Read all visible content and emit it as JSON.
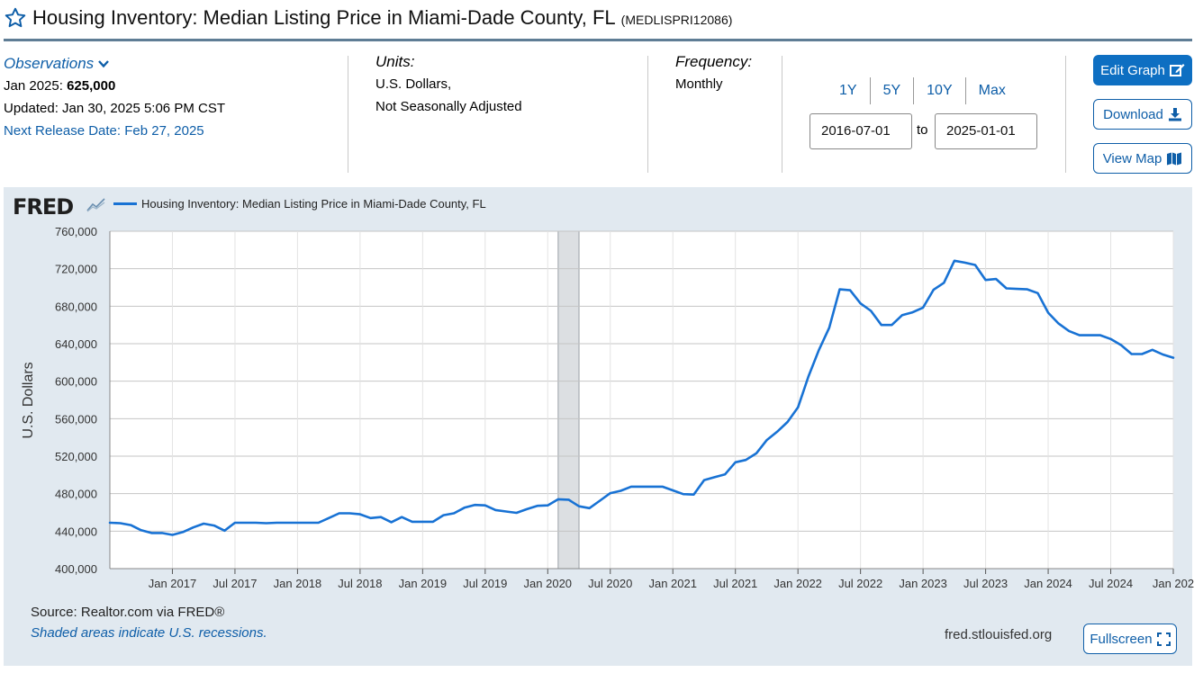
{
  "header": {
    "title": "Housing Inventory: Median Listing Price in Miami-Dade County, FL",
    "series_id": "(MEDLISPRI12086)"
  },
  "observations": {
    "label": "Observations",
    "latest_prefix": "Jan 2025:",
    "latest_value": "625,000",
    "updated": "Updated: Jan 30, 2025 5:06 PM CST",
    "next_release": "Next Release Date: Feb 27, 2025"
  },
  "units": {
    "label": "Units:",
    "line1": "U.S. Dollars,",
    "line2": "Not Seasonally Adjusted"
  },
  "frequency": {
    "label": "Frequency:",
    "value": "Monthly"
  },
  "range": {
    "tabs": [
      "1Y",
      "5Y",
      "10Y",
      "Max"
    ],
    "start": "2016-07-01",
    "to_label": "to",
    "end": "2025-01-01"
  },
  "buttons": {
    "edit_graph": "Edit Graph",
    "download": "Download",
    "view_map": "View Map",
    "fullscreen": "Fullscreen"
  },
  "footer": {
    "source": "Source: Realtor.com via FRED®",
    "recession_note": "Shaded areas indicate U.S. recessions.",
    "site": "fred.stlouisfed.org"
  },
  "logo_text": "FRED",
  "colors": {
    "series": "#1872d4",
    "panel_bg": "#e1e9f0",
    "link": "#0e5ea8",
    "recession": "#dcdfe2"
  },
  "icons": [
    "star-icon",
    "chevron-down-icon",
    "edit-icon",
    "download-icon",
    "map-icon",
    "fullscreen-icon",
    "fred-chart-icon"
  ],
  "chart_data": {
    "type": "line",
    "ylabel": "U.S. Dollars",
    "ylim": [
      400000,
      760000
    ],
    "yticks": [
      400000,
      440000,
      480000,
      520000,
      560000,
      600000,
      640000,
      680000,
      720000,
      760000
    ],
    "ytick_labels": [
      "400,000",
      "440,000",
      "480,000",
      "520,000",
      "560,000",
      "600,000",
      "640,000",
      "680,000",
      "720,000",
      "760,000"
    ],
    "xlim": [
      "2016-07",
      "2025-01"
    ],
    "xticks": [
      {
        "date": "2017-01",
        "label": "Jan 2017"
      },
      {
        "date": "2017-07",
        "label": "Jul 2017"
      },
      {
        "date": "2018-01",
        "label": "Jan 2018"
      },
      {
        "date": "2018-07",
        "label": "Jul 2018"
      },
      {
        "date": "2019-01",
        "label": "Jan 2019"
      },
      {
        "date": "2019-07",
        "label": "Jul 2019"
      },
      {
        "date": "2020-01",
        "label": "Jan 2020"
      },
      {
        "date": "2020-07",
        "label": "Jul 2020"
      },
      {
        "date": "2021-01",
        "label": "Jan 2021"
      },
      {
        "date": "2021-07",
        "label": "Jul 2021"
      },
      {
        "date": "2022-01",
        "label": "Jan 2022"
      },
      {
        "date": "2022-07",
        "label": "Jul 2022"
      },
      {
        "date": "2023-01",
        "label": "Jan 2023"
      },
      {
        "date": "2023-07",
        "label": "Jul 2023"
      },
      {
        "date": "2024-01",
        "label": "Jan 2024"
      },
      {
        "date": "2024-07",
        "label": "Jul 2024"
      },
      {
        "date": "2025-01",
        "label": "Jan 202"
      }
    ],
    "grid": true,
    "legend_position": "top-left",
    "recessions": [
      {
        "start": "2020-02",
        "end": "2020-04"
      }
    ],
    "series": [
      {
        "name": "Housing Inventory: Median Listing Price in Miami-Dade County, FL",
        "color": "#1872d4",
        "x": [
          "2016-07",
          "2016-08",
          "2016-09",
          "2016-10",
          "2016-11",
          "2016-12",
          "2017-01",
          "2017-02",
          "2017-03",
          "2017-04",
          "2017-05",
          "2017-06",
          "2017-07",
          "2017-08",
          "2017-09",
          "2017-10",
          "2017-11",
          "2017-12",
          "2018-01",
          "2018-02",
          "2018-03",
          "2018-04",
          "2018-05",
          "2018-06",
          "2018-07",
          "2018-08",
          "2018-09",
          "2018-10",
          "2018-11",
          "2018-12",
          "2019-01",
          "2019-02",
          "2019-03",
          "2019-04",
          "2019-05",
          "2019-06",
          "2019-07",
          "2019-08",
          "2019-09",
          "2019-10",
          "2019-11",
          "2019-12",
          "2020-01",
          "2020-02",
          "2020-03",
          "2020-04",
          "2020-05",
          "2020-06",
          "2020-07",
          "2020-08",
          "2020-09",
          "2020-10",
          "2020-11",
          "2020-12",
          "2021-01",
          "2021-02",
          "2021-03",
          "2021-04",
          "2021-05",
          "2021-06",
          "2021-07",
          "2021-08",
          "2021-09",
          "2021-10",
          "2021-11",
          "2021-12",
          "2022-01",
          "2022-02",
          "2022-03",
          "2022-04",
          "2022-05",
          "2022-06",
          "2022-07",
          "2022-08",
          "2022-09",
          "2022-10",
          "2022-11",
          "2022-12",
          "2023-01",
          "2023-02",
          "2023-03",
          "2023-04",
          "2023-05",
          "2023-06",
          "2023-07",
          "2023-08",
          "2023-09",
          "2023-10",
          "2023-11",
          "2023-12",
          "2024-01",
          "2024-02",
          "2024-03",
          "2024-04",
          "2024-05",
          "2024-06",
          "2024-07",
          "2024-08",
          "2024-09",
          "2024-10",
          "2024-11",
          "2024-12",
          "2025-01"
        ],
        "values": [
          449000,
          448500,
          446500,
          441000,
          438000,
          438000,
          436000,
          439000,
          444000,
          448000,
          446000,
          440500,
          449000,
          449000,
          449000,
          448500,
          449000,
          449000,
          449000,
          449000,
          449000,
          454000,
          459000,
          459000,
          458000,
          454000,
          455000,
          449500,
          455000,
          450000,
          450000,
          450000,
          457000,
          459000,
          465000,
          468000,
          467500,
          462500,
          461000,
          459500,
          463500,
          467000,
          467500,
          474000,
          473500,
          466500,
          464500,
          472500,
          480500,
          483000,
          487500,
          487500,
          487500,
          487500,
          483500,
          479500,
          479000,
          494500,
          497500,
          500500,
          513500,
          516000,
          523000,
          537000,
          546000,
          556500,
          572000,
          605000,
          633000,
          657000,
          698000,
          697000,
          683000,
          675000,
          660000,
          660000,
          670500,
          673500,
          678500,
          697500,
          705000,
          728500,
          726500,
          724000,
          708000,
          709000,
          699000,
          698500,
          698000,
          694000,
          673000,
          661500,
          653500,
          649000,
          649000,
          649000,
          645000,
          638500,
          629000,
          629000,
          633500,
          628500,
          625000
        ]
      }
    ]
  }
}
